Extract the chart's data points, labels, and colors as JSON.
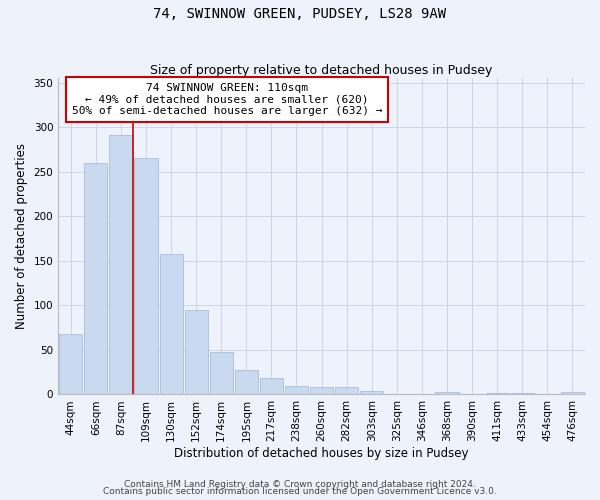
{
  "title": "74, SWINNOW GREEN, PUDSEY, LS28 9AW",
  "subtitle": "Size of property relative to detached houses in Pudsey",
  "xlabel": "Distribution of detached houses by size in Pudsey",
  "ylabel": "Number of detached properties",
  "bar_labels": [
    "44sqm",
    "66sqm",
    "87sqm",
    "109sqm",
    "130sqm",
    "152sqm",
    "174sqm",
    "195sqm",
    "217sqm",
    "238sqm",
    "260sqm",
    "282sqm",
    "303sqm",
    "325sqm",
    "346sqm",
    "368sqm",
    "390sqm",
    "411sqm",
    "433sqm",
    "454sqm",
    "476sqm"
  ],
  "bar_values": [
    68,
    260,
    291,
    265,
    158,
    95,
    48,
    28,
    18,
    10,
    8,
    8,
    4,
    0,
    0,
    3,
    0,
    2,
    2,
    1,
    3
  ],
  "bar_color": "#c9d9f0",
  "bar_edge_color": "#a8bedd",
  "marker_index": 3,
  "marker_color": "#cc0000",
  "annotation_line1": "74 SWINNOW GREEN: 110sqm",
  "annotation_line2": "← 49% of detached houses are smaller (620)",
  "annotation_line3": "50% of semi-detached houses are larger (632) →",
  "annotation_box_edge": "#cc0000",
  "annotation_box_fill": "#ffffff",
  "ylim": [
    0,
    355
  ],
  "yticks": [
    0,
    50,
    100,
    150,
    200,
    250,
    300,
    350
  ],
  "footer_line1": "Contains HM Land Registry data © Crown copyright and database right 2024.",
  "footer_line2": "Contains public sector information licensed under the Open Government Licence v3.0.",
  "background_color": "#eef2fa",
  "plot_background": "#eef2fa",
  "grid_color": "#c8d0e0",
  "title_fontsize": 10,
  "subtitle_fontsize": 9,
  "axis_label_fontsize": 8.5,
  "tick_fontsize": 7.5,
  "annotation_fontsize": 8,
  "footer_fontsize": 6.5
}
